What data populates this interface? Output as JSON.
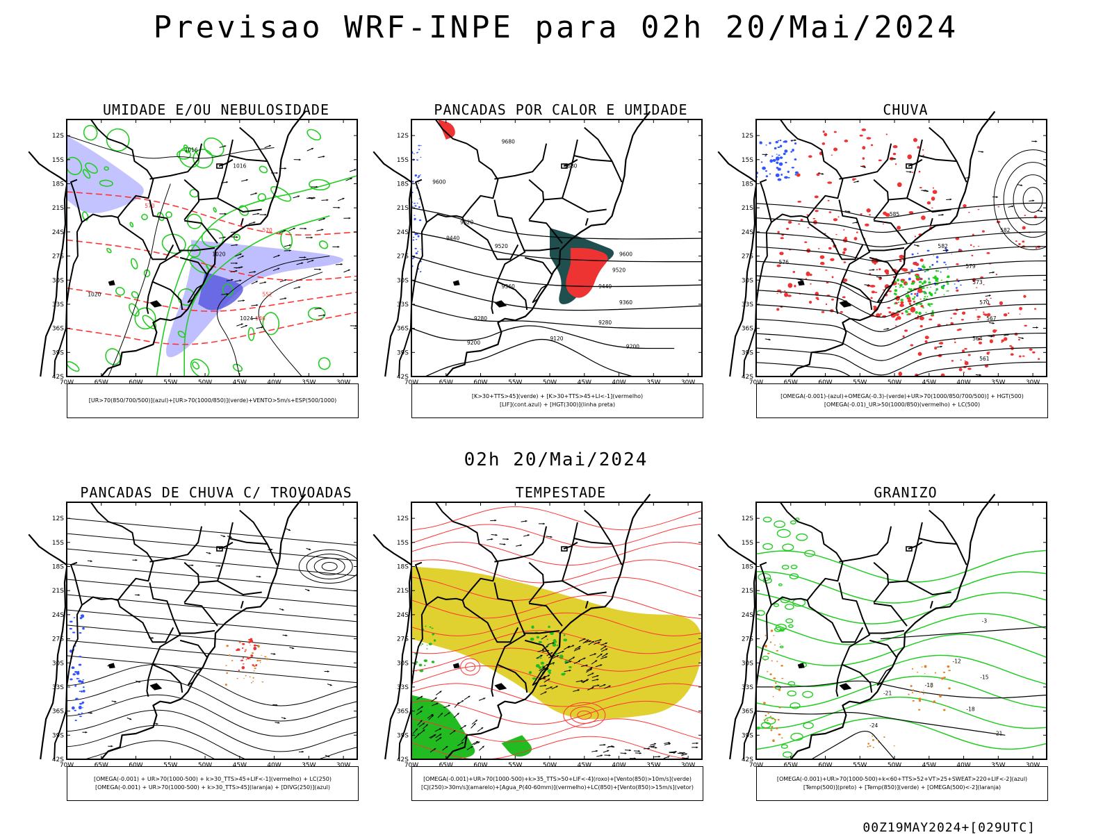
{
  "main_title": "Previsao WRF-INPE  para 02h 20/Mai/2024",
  "mid_time": "02h 20/Mai/2024",
  "footer_run": "00Z19MAY2024+[029UTC]",
  "axis": {
    "lat_ticks": [
      "12S",
      "15S",
      "18S",
      "21S",
      "24S",
      "27S",
      "30S",
      "33S",
      "36S",
      "39S",
      "42S"
    ],
    "lon_ticks": [
      "70W",
      "65W",
      "60W",
      "55W",
      "50W",
      "45W",
      "40W",
      "35W",
      "30W"
    ]
  },
  "colors": {
    "coast": "#000000",
    "humidity_blue": "#aaaaff",
    "humidity_green": "#22cc22",
    "contour_red": "#ff3333",
    "teal": "#1f4f4f",
    "shade_red": "#ee3333",
    "blue": "#3355ff",
    "yellow": "#e0d030",
    "orange": "#e08020",
    "green_fill": "#22bb22"
  },
  "panels": [
    {
      "title": "UMIDADE E/OU NEBULOSIDADE",
      "legend": [
        "[UR>70(850/700/500)](azul)+[UR>70(1000/850)](verde)+VENTO>5m/s+ESP(500/1000)"
      ],
      "contour_labels": [
        {
          "text": "1016",
          "lon": -52,
          "lat": -14
        },
        {
          "text": "1016",
          "lon": -45,
          "lat": -16
        },
        {
          "text": "1020",
          "lon": -48,
          "lat": -27
        },
        {
          "text": "1024",
          "lon": -44,
          "lat": -35
        },
        {
          "text": "1020",
          "lon": -66,
          "lat": -32
        }
      ],
      "red_labels": [
        {
          "text": "570",
          "lon": -58,
          "lat": -21
        },
        {
          "text": "570",
          "lon": -41,
          "lat": -24
        },
        {
          "text": "552",
          "lon": -41,
          "lat": -32
        },
        {
          "text": "546",
          "lon": -42,
          "lat": -35
        }
      ]
    },
    {
      "title": "PANCADAS POR CALOR E UMIDADE",
      "legend": [
        "[K>30+TTS>45](verde) + [K>30+TTS>45+LI<-1](vermelho)",
        "[LIF](cont.azul) + [HGT(300)](linha preta)"
      ],
      "contour_labels": [
        {
          "text": "9680",
          "lon": -56,
          "lat": -13
        },
        {
          "text": "9680",
          "lon": -47,
          "lat": -16
        },
        {
          "text": "9600",
          "lon": -66,
          "lat": -18
        },
        {
          "text": "9520",
          "lon": -62,
          "lat": -23
        },
        {
          "text": "9440",
          "lon": -64,
          "lat": -25
        },
        {
          "text": "9520",
          "lon": -57,
          "lat": -26
        },
        {
          "text": "9360",
          "lon": -56,
          "lat": -31
        },
        {
          "text": "9280",
          "lon": -60,
          "lat": -35
        },
        {
          "text": "9200",
          "lon": -61,
          "lat": -38
        },
        {
          "text": "9120",
          "lon": -49,
          "lat": -37.5
        },
        {
          "text": "9600",
          "lon": -39,
          "lat": -27
        },
        {
          "text": "9520",
          "lon": -40,
          "lat": -29
        },
        {
          "text": "9440",
          "lon": -42,
          "lat": -31
        },
        {
          "text": "9360",
          "lon": -39,
          "lat": -33
        },
        {
          "text": "9280",
          "lon": -42,
          "lat": -35.5
        },
        {
          "text": "9200",
          "lon": -38,
          "lat": -38.5
        }
      ]
    },
    {
      "title": "CHUVA",
      "legend": [
        "[OMEGA(-0.001)-(azul)+OMEGA(-0.3)-(verde)+UR>70(1000/850/700/500)] + HGT(500)",
        "[OMEGA(-0.01)_UR>50(1000/850)(vermelho) + LC(500)"
      ],
      "contour_labels": [
        {
          "text": "585",
          "lon": -50,
          "lat": -22
        },
        {
          "text": "582",
          "lon": -34,
          "lat": -24
        },
        {
          "text": "582",
          "lon": -43,
          "lat": -26
        },
        {
          "text": "579",
          "lon": -39,
          "lat": -28.5
        },
        {
          "text": "576",
          "lon": -66,
          "lat": -28
        },
        {
          "text": "573",
          "lon": -38,
          "lat": -30.5
        },
        {
          "text": "570",
          "lon": -37,
          "lat": -33
        },
        {
          "text": "567",
          "lon": -36,
          "lat": -35
        },
        {
          "text": "564",
          "lon": -38,
          "lat": -37.5
        },
        {
          "text": "561",
          "lon": -37,
          "lat": -40
        }
      ]
    },
    {
      "title": "PANCADAS DE CHUVA C/ TROVOADAS",
      "legend": [
        "[OMEGA(-0.001) + UR>70(1000-500) + k>30_TTS>45+LIF<-1](vermelho) + LC(250)",
        "[OMEGA(-0.001) + UR>70(1000-500) + k>30_TTS>45](laranja) + [DIVG(250)](azul)"
      ]
    },
    {
      "title": "TEMPESTADE",
      "legend": [
        "[OMEGA(-0.001)+UR>70(1000-500)+k>35_TTS>50+LIF<-4](roxo)+[Vento(850)>10m/s](verde)",
        "[CJ(250)>30m/s](amarelo)+[Agua_P(40-60mm)](vermelho)+LC(850)+[Vento(850)>15m/s](vetor)"
      ]
    },
    {
      "title": "GRANIZO",
      "legend": [
        "[OMEGA(-0.001)+UR>70(1000-500)+k<60+TTS>52+VT>25+SWEAT>220+LIF<-2](azul)",
        "[Temp(500)](preto) + [Temp(850)](verde) + [OMEGA(500)<-2](laranja)"
      ],
      "contour_labels": [
        {
          "text": "-3",
          "lon": -37,
          "lat": -25
        },
        {
          "text": "-12",
          "lon": -41,
          "lat": -30
        },
        {
          "text": "-15",
          "lon": -37,
          "lat": -32
        },
        {
          "text": "-18",
          "lon": -45,
          "lat": -33
        },
        {
          "text": "-18",
          "lon": -39,
          "lat": -36
        },
        {
          "text": "-21",
          "lon": -51,
          "lat": -34
        },
        {
          "text": "-24",
          "lon": -53,
          "lat": -38
        },
        {
          "text": "-21",
          "lon": -35,
          "lat": -39
        }
      ]
    }
  ]
}
